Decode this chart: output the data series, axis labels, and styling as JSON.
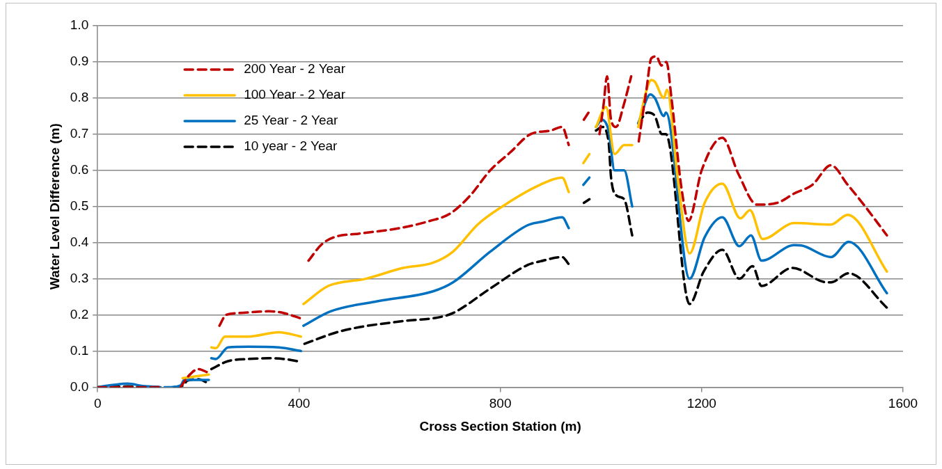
{
  "chart_data": {
    "type": "line",
    "xlabel": "Cross Section Station (m)",
    "ylabel": "Water Level Difference (m)",
    "xlim": [
      0,
      1600
    ],
    "xticks": [
      0,
      400,
      800,
      1200,
      1600
    ],
    "ylim": [
      0,
      1
    ],
    "yticks": [
      {
        "value": 0,
        "label": "0.0"
      },
      0.1,
      0.2,
      0.3,
      0.4,
      0.5,
      0.6,
      0.7,
      0.8,
      0.9,
      {
        "value": 1,
        "label": "1.0"
      }
    ],
    "grid": "y",
    "legend": "top left",
    "marker": "none",
    "series": [
      {
        "name": "200 Year - 2 Year",
        "color": "#c00000",
        "line_style": "dashed",
        "x": [
          0,
          125,
          145,
          165,
          180,
          200,
          220,
          223,
          242,
          255,
          280,
          340,
          370,
          404,
          411,
          419,
          445,
          470,
          520,
          600,
          660,
          700,
          740,
          780,
          820,
          860,
          900,
          923,
          936,
          950,
          966,
          980,
          988,
          997,
          1005,
          1012,
          1020,
          1030,
          1045,
          1060,
          1068,
          1075,
          1090,
          1100,
          1110,
          1120,
          1130,
          1140,
          1160,
          1174,
          1200,
          1241,
          1273,
          1310,
          1350,
          1384,
          1420,
          1457,
          1490,
          1522,
          1568
        ],
        "values": [
          0,
          0,
          null,
          0,
          0.03,
          0.05,
          0.04,
          null,
          0.17,
          0.2,
          0.205,
          0.21,
          0.205,
          0.19,
          null,
          0.35,
          0.395,
          0.415,
          0.425,
          0.44,
          0.46,
          0.48,
          0.53,
          0.6,
          0.65,
          0.7,
          0.71,
          0.72,
          0.67,
          null,
          0.74,
          0.77,
          null,
          0.7,
          0.78,
          0.86,
          0.74,
          0.72,
          0.78,
          0.86,
          null,
          0.68,
          0.82,
          0.91,
          0.915,
          0.89,
          0.9,
          0.8,
          0.55,
          0.46,
          0.6,
          0.69,
          0.59,
          0.505,
          0.51,
          0.536,
          0.56,
          0.614,
          0.56,
          0.505,
          0.42
        ]
      },
      {
        "name": "100 Year - 2 Year",
        "color": "#ffc000",
        "line_style": "solid",
        "x": [
          169,
          221,
          223,
          226,
          235,
          253,
          300,
          360,
          404,
          406,
          409,
          458,
          533,
          607,
          666,
          706,
          755,
          804,
          879,
          923,
          936,
          950,
          965,
          977,
          984,
          990,
          1010,
          1027,
          1046,
          1062,
          1068,
          1074,
          1090,
          1100,
          1107,
          1125,
          1131,
          1153,
          1176,
          1206,
          1241,
          1277,
          1296,
          1321,
          1384,
          1457,
          1490,
          1568
        ],
        "values": [
          0.025,
          0.035,
          null,
          0.11,
          0.108,
          0.14,
          0.14,
          0.152,
          0.14,
          null,
          0.23,
          0.28,
          0.3,
          0.33,
          0.344,
          0.375,
          0.45,
          0.5,
          0.56,
          0.58,
          0.54,
          null,
          0.62,
          0.645,
          null,
          0.72,
          0.775,
          0.645,
          0.67,
          0.67,
          null,
          0.72,
          0.82,
          0.85,
          0.845,
          0.8,
          0.823,
          0.57,
          0.37,
          0.51,
          0.563,
          0.467,
          0.49,
          0.41,
          0.454,
          0.45,
          0.477,
          0.32
        ]
      },
      {
        "name": "25 Year - 2 Year",
        "color": "#0070c0",
        "line_style": "solid",
        "x": [
          0,
          30,
          60,
          90,
          125,
          129,
          133,
          140,
          165,
          172,
          221,
          223,
          226,
          235,
          259,
          300,
          360,
          404,
          406,
          409,
          463,
          557,
          666,
          706,
          780,
          854,
          884,
          923,
          936,
          950,
          965,
          977,
          984,
          990,
          1002,
          1015,
          1027,
          1046,
          1062,
          1068,
          1074,
          1098,
          1107,
          1125,
          1129,
          1176,
          1206,
          1241,
          1275,
          1298,
          1319,
          1384,
          1398,
          1457,
          1492,
          1568
        ],
        "values": [
          0,
          0.006,
          0.01,
          0.003,
          0,
          null,
          0,
          0,
          0.005,
          0.02,
          0.02,
          null,
          0.08,
          0.078,
          0.11,
          0.112,
          0.11,
          0.1,
          null,
          0.17,
          0.21,
          0.238,
          0.265,
          0.29,
          0.375,
          0.448,
          0.458,
          0.47,
          0.44,
          null,
          0.56,
          0.58,
          null,
          0.72,
          0.74,
          0.71,
          0.6,
          0.6,
          0.5,
          null,
          0.73,
          0.81,
          0.8,
          0.75,
          0.76,
          0.3,
          0.415,
          0.47,
          0.39,
          0.42,
          0.35,
          0.393,
          0.392,
          0.36,
          0.402,
          0.26
        ]
      },
      {
        "name": "10 year - 2 Year",
        "color": "#000000",
        "line_style": "dashed",
        "x": [
          0,
          60,
          125,
          140,
          152,
          170,
          178,
          200,
          221,
          223,
          226,
          259,
          300,
          340,
          370,
          404,
          408,
          411,
          483,
          607,
          677,
          706,
          780,
          854,
          879,
          923,
          936,
          950,
          966,
          977,
          984,
          990,
          1002,
          1015,
          1020,
          1031,
          1046,
          1062,
          1068,
          1074,
          1093,
          1107,
          1121,
          1129,
          1176,
          1204,
          1241,
          1275,
          1301,
          1319,
          1380,
          1449,
          1457,
          1492,
          1568
        ],
        "values": [
          0,
          0.002,
          0,
          null,
          0,
          0.005,
          0.018,
          0.022,
          0.01,
          null,
          0.05,
          0.072,
          0.078,
          0.08,
          0.078,
          0.07,
          null,
          0.12,
          0.155,
          0.183,
          0.193,
          0.205,
          0.273,
          0.338,
          0.348,
          0.36,
          0.34,
          null,
          0.51,
          0.52,
          null,
          0.71,
          0.72,
          0.68,
          0.58,
          0.53,
          0.52,
          0.42,
          null,
          0.73,
          0.76,
          0.75,
          0.7,
          0.7,
          0.23,
          0.32,
          0.38,
          0.3,
          0.335,
          0.28,
          0.33,
          0.29,
          0.29,
          0.315,
          0.22
        ]
      }
    ]
  }
}
